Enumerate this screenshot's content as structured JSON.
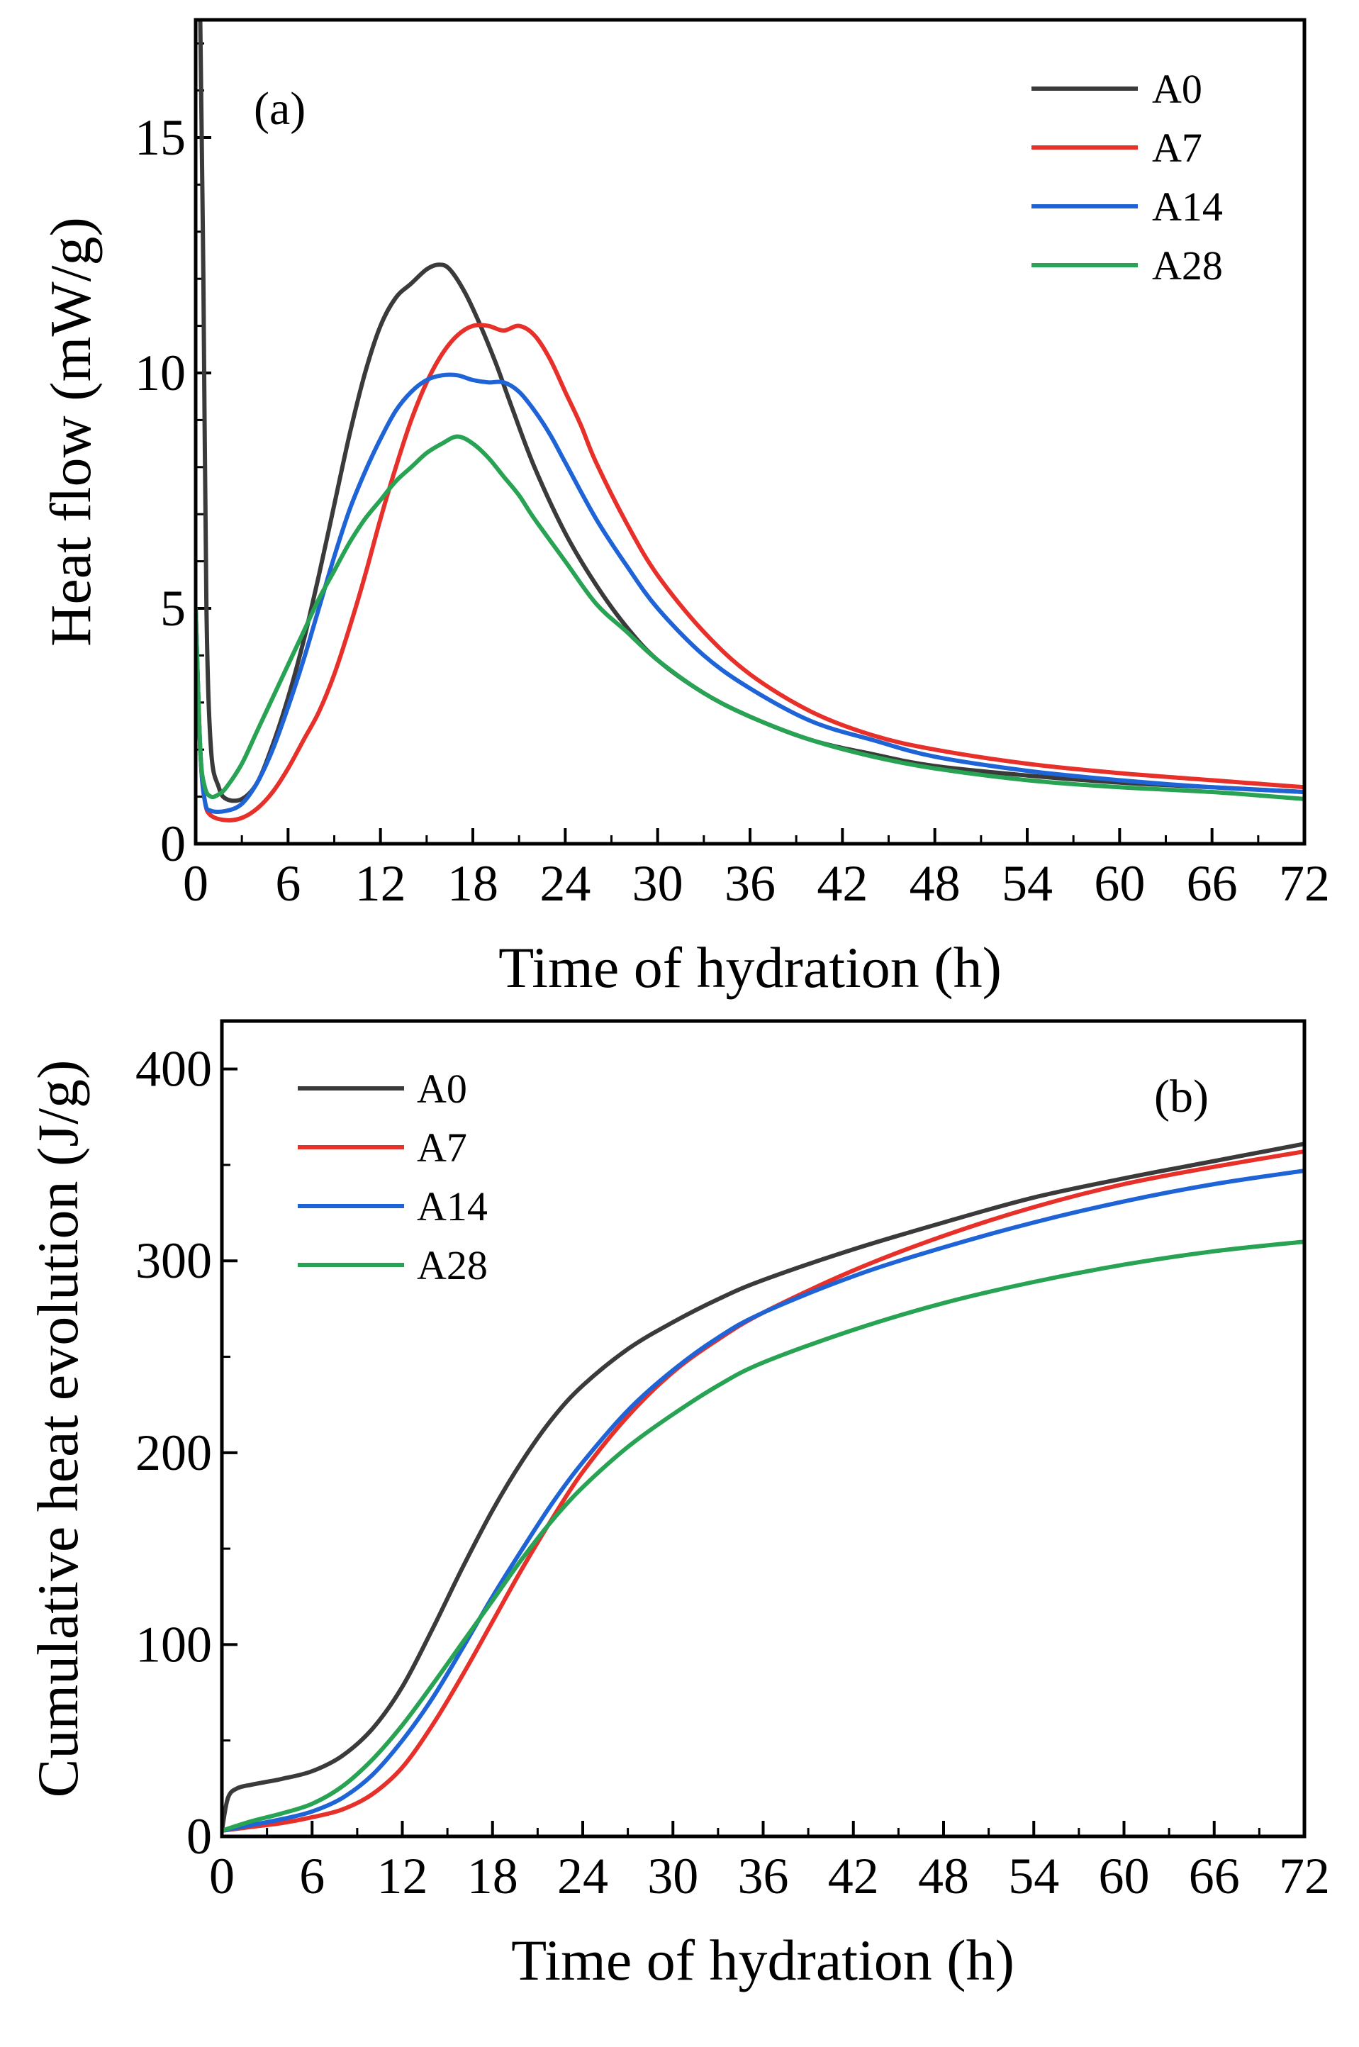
{
  "chart_data": [
    {
      "type": "line",
      "panel_label": "(a)",
      "xlabel": "Time of hydration (h)",
      "ylabel": "Heat flow (mW/g)",
      "xlim": [
        0,
        72
      ],
      "ylim": [
        0,
        17.5
      ],
      "xticks": [
        0,
        6,
        12,
        18,
        24,
        30,
        36,
        42,
        48,
        54,
        60,
        66,
        72
      ],
      "yticks": [
        0,
        5,
        10,
        15
      ],
      "legend_position": "top-right",
      "series": [
        {
          "name": "A0",
          "color": "#3a3a3a",
          "points": [
            [
              0.3,
              17.5
            ],
            [
              0.5,
              12
            ],
            [
              0.7,
              5
            ],
            [
              1,
              2
            ],
            [
              1.5,
              1.2
            ],
            [
              2,
              0.95
            ],
            [
              3,
              0.95
            ],
            [
              4,
              1.3
            ],
            [
              5,
              2.1
            ],
            [
              6,
              3.1
            ],
            [
              7,
              4.3
            ],
            [
              8,
              5.7
            ],
            [
              9,
              7.2
            ],
            [
              10,
              8.7
            ],
            [
              11,
              10
            ],
            [
              12,
              11
            ],
            [
              13,
              11.6
            ],
            [
              14,
              11.9
            ],
            [
              15,
              12.2
            ],
            [
              15.8,
              12.3
            ],
            [
              16.5,
              12.2
            ],
            [
              17.5,
              11.7
            ],
            [
              18.5,
              11
            ],
            [
              19.5,
              10.2
            ],
            [
              20.5,
              9.3
            ],
            [
              22,
              8
            ],
            [
              24,
              6.6
            ],
            [
              26,
              5.5
            ],
            [
              28,
              4.6
            ],
            [
              30,
              3.9
            ],
            [
              33,
              3.2
            ],
            [
              36,
              2.7
            ],
            [
              40,
              2.2
            ],
            [
              44,
              1.9
            ],
            [
              48,
              1.65
            ],
            [
              54,
              1.45
            ],
            [
              60,
              1.3
            ],
            [
              66,
              1.2
            ],
            [
              72,
              1.1
            ]
          ]
        },
        {
          "name": "A7",
          "color": "#e8302a",
          "points": [
            [
              0,
              5
            ],
            [
              0.3,
              2
            ],
            [
              0.6,
              0.9
            ],
            [
              1,
              0.6
            ],
            [
              2,
              0.5
            ],
            [
              3,
              0.55
            ],
            [
              4,
              0.75
            ],
            [
              5,
              1.1
            ],
            [
              6,
              1.6
            ],
            [
              7,
              2.2
            ],
            [
              8,
              2.8
            ],
            [
              9,
              3.6
            ],
            [
              10,
              4.6
            ],
            [
              11,
              5.7
            ],
            [
              12,
              6.9
            ],
            [
              13,
              8
            ],
            [
              14,
              9
            ],
            [
              15,
              9.8
            ],
            [
              16,
              10.4
            ],
            [
              17,
              10.8
            ],
            [
              18,
              11
            ],
            [
              19,
              11
            ],
            [
              20,
              10.9
            ],
            [
              21,
              11
            ],
            [
              22,
              10.8
            ],
            [
              23,
              10.3
            ],
            [
              24,
              9.6
            ],
            [
              25,
              8.9
            ],
            [
              26,
              8.1
            ],
            [
              28,
              6.8
            ],
            [
              30,
              5.7
            ],
            [
              33,
              4.5
            ],
            [
              36,
              3.6
            ],
            [
              40,
              2.8
            ],
            [
              44,
              2.3
            ],
            [
              48,
              2
            ],
            [
              54,
              1.7
            ],
            [
              60,
              1.5
            ],
            [
              66,
              1.35
            ],
            [
              72,
              1.2
            ]
          ]
        },
        {
          "name": "A14",
          "color": "#1f64d6",
          "points": [
            [
              0,
              5
            ],
            [
              0.3,
              2
            ],
            [
              0.6,
              0.9
            ],
            [
              1,
              0.7
            ],
            [
              2,
              0.7
            ],
            [
              3,
              0.85
            ],
            [
              4,
              1.3
            ],
            [
              5,
              2
            ],
            [
              6,
              2.9
            ],
            [
              7,
              3.9
            ],
            [
              8,
              5
            ],
            [
              9,
              6.1
            ],
            [
              10,
              7.1
            ],
            [
              11,
              7.9
            ],
            [
              12,
              8.6
            ],
            [
              13,
              9.2
            ],
            [
              14,
              9.6
            ],
            [
              15,
              9.85
            ],
            [
              16,
              9.95
            ],
            [
              17,
              9.95
            ],
            [
              18,
              9.85
            ],
            [
              19,
              9.8
            ],
            [
              20,
              9.8
            ],
            [
              21,
              9.6
            ],
            [
              22,
              9.2
            ],
            [
              23,
              8.7
            ],
            [
              24,
              8.1
            ],
            [
              26,
              6.9
            ],
            [
              28,
              5.9
            ],
            [
              30,
              5
            ],
            [
              33,
              4
            ],
            [
              36,
              3.3
            ],
            [
              40,
              2.6
            ],
            [
              44,
              2.2
            ],
            [
              48,
              1.85
            ],
            [
              54,
              1.55
            ],
            [
              60,
              1.35
            ],
            [
              66,
              1.2
            ],
            [
              72,
              1.1
            ]
          ]
        },
        {
          "name": "A28",
          "color": "#27a353",
          "points": [
            [
              0,
              5
            ],
            [
              0.3,
              2
            ],
            [
              0.6,
              1.2
            ],
            [
              1,
              1
            ],
            [
              1.5,
              1.05
            ],
            [
              2,
              1.2
            ],
            [
              3,
              1.7
            ],
            [
              4,
              2.4
            ],
            [
              5,
              3.1
            ],
            [
              6,
              3.8
            ],
            [
              7,
              4.5
            ],
            [
              8,
              5.2
            ],
            [
              9,
              5.8
            ],
            [
              10,
              6.4
            ],
            [
              11,
              6.9
            ],
            [
              12,
              7.3
            ],
            [
              13,
              7.7
            ],
            [
              14,
              8
            ],
            [
              15,
              8.3
            ],
            [
              16,
              8.5
            ],
            [
              17,
              8.65
            ],
            [
              18,
              8.5
            ],
            [
              19,
              8.2
            ],
            [
              20,
              7.8
            ],
            [
              21,
              7.4
            ],
            [
              22,
              6.9
            ],
            [
              24,
              6
            ],
            [
              26,
              5.1
            ],
            [
              28,
              4.5
            ],
            [
              30,
              3.9
            ],
            [
              33,
              3.2
            ],
            [
              36,
              2.7
            ],
            [
              40,
              2.2
            ],
            [
              44,
              1.85
            ],
            [
              48,
              1.6
            ],
            [
              54,
              1.35
            ],
            [
              60,
              1.2
            ],
            [
              66,
              1.1
            ],
            [
              72,
              0.95
            ]
          ]
        }
      ]
    },
    {
      "type": "line",
      "panel_label": "(b)",
      "xlabel": "Time of hydration (h)",
      "ylabel": "Cumulative heat evolution (J/g)",
      "xlim": [
        0,
        72
      ],
      "ylim": [
        0,
        425
      ],
      "xticks": [
        0,
        6,
        12,
        18,
        24,
        30,
        36,
        42,
        48,
        54,
        60,
        66,
        72
      ],
      "yticks": [
        0,
        100,
        200,
        300,
        400
      ],
      "legend_position": "top-left",
      "series": [
        {
          "name": "A0",
          "color": "#3a3a3a",
          "points": [
            [
              0,
              3
            ],
            [
              0.4,
              20
            ],
            [
              1,
              25
            ],
            [
              2,
              27
            ],
            [
              4,
              30
            ],
            [
              6,
              34
            ],
            [
              8,
              42
            ],
            [
              10,
              56
            ],
            [
              12,
              78
            ],
            [
              14,
              108
            ],
            [
              16,
              140
            ],
            [
              18,
              170
            ],
            [
              20,
              196
            ],
            [
              22,
              218
            ],
            [
              24,
              235
            ],
            [
              27,
              254
            ],
            [
              30,
              268
            ],
            [
              33,
              280
            ],
            [
              36,
              290
            ],
            [
              42,
              306
            ],
            [
              48,
              320
            ],
            [
              54,
              333
            ],
            [
              60,
              343
            ],
            [
              66,
              352
            ],
            [
              72,
              361
            ]
          ]
        },
        {
          "name": "A7",
          "color": "#e8302a",
          "points": [
            [
              0,
              3
            ],
            [
              2,
              5
            ],
            [
              4,
              7
            ],
            [
              6,
              10
            ],
            [
              8,
              14
            ],
            [
              10,
              22
            ],
            [
              12,
              36
            ],
            [
              14,
              58
            ],
            [
              16,
              84
            ],
            [
              18,
              112
            ],
            [
              20,
              140
            ],
            [
              22,
              166
            ],
            [
              24,
              190
            ],
            [
              27,
              219
            ],
            [
              30,
              242
            ],
            [
              33,
              259
            ],
            [
              36,
              273
            ],
            [
              42,
              295
            ],
            [
              48,
              313
            ],
            [
              54,
              328
            ],
            [
              60,
              340
            ],
            [
              66,
              349
            ],
            [
              72,
              357
            ]
          ]
        },
        {
          "name": "A14",
          "color": "#1f64d6",
          "points": [
            [
              0,
              3
            ],
            [
              2,
              6
            ],
            [
              4,
              9
            ],
            [
              6,
              13
            ],
            [
              8,
              20
            ],
            [
              10,
              32
            ],
            [
              12,
              50
            ],
            [
              14,
              72
            ],
            [
              16,
              98
            ],
            [
              18,
              125
            ],
            [
              20,
              150
            ],
            [
              22,
              174
            ],
            [
              24,
              195
            ],
            [
              27,
              222
            ],
            [
              30,
              243
            ],
            [
              33,
              260
            ],
            [
              36,
              273
            ],
            [
              42,
              292
            ],
            [
              48,
              307
            ],
            [
              54,
              320
            ],
            [
              60,
              331
            ],
            [
              66,
              340
            ],
            [
              72,
              347
            ]
          ]
        },
        {
          "name": "A28",
          "color": "#27a353",
          "points": [
            [
              0,
              3
            ],
            [
              2,
              8
            ],
            [
              4,
              12
            ],
            [
              6,
              17
            ],
            [
              8,
              26
            ],
            [
              10,
              40
            ],
            [
              12,
              58
            ],
            [
              14,
              79
            ],
            [
              16,
              101
            ],
            [
              18,
              123
            ],
            [
              20,
              145
            ],
            [
              22,
              165
            ],
            [
              24,
              182
            ],
            [
              27,
              203
            ],
            [
              30,
              220
            ],
            [
              33,
              235
            ],
            [
              36,
              247
            ],
            [
              42,
              264
            ],
            [
              48,
              278
            ],
            [
              54,
              289
            ],
            [
              60,
              298
            ],
            [
              66,
              305
            ],
            [
              72,
              310
            ]
          ]
        }
      ]
    }
  ]
}
